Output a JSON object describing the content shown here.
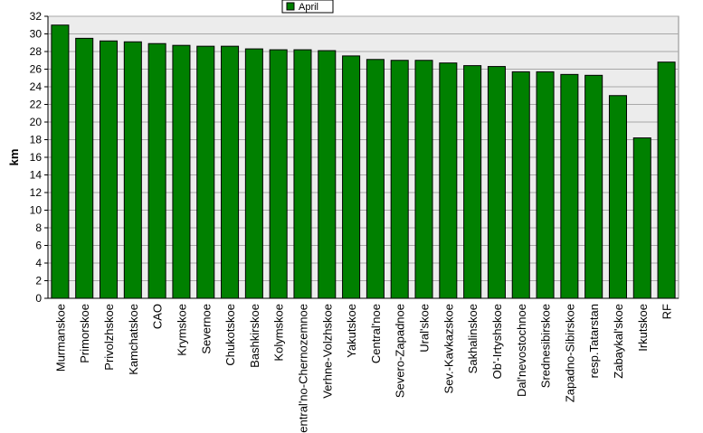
{
  "chart_data": {
    "type": "bar",
    "title": "",
    "xlabel": "",
    "ylabel": "km",
    "ylim": [
      0,
      32
    ],
    "ytick_step": 2,
    "grid": true,
    "legend_position": "top-center",
    "colors": {
      "bar": "#008000",
      "bar_edge": "#000000",
      "plot_bg": "#ececec"
    },
    "series": [
      {
        "name": "April",
        "values": [
          31.0,
          29.5,
          29.2,
          29.1,
          28.9,
          28.7,
          28.6,
          28.6,
          28.3,
          28.2,
          28.2,
          28.1,
          27.5,
          27.1,
          27.0,
          27.0,
          26.7,
          26.4,
          26.3,
          25.7,
          25.7,
          25.4,
          25.3,
          23.0,
          18.2,
          26.8
        ]
      }
    ],
    "categories": [
      "Murmanskoe",
      "Primorskoe",
      "Privolzhskoe",
      "Kamchatskoe",
      "CAO",
      "Krymskoe",
      "Severnoe",
      "Chukotskoe",
      "Bashkirskoe",
      "Kolymskoe",
      "Central'no-Chernozemnoe",
      "Verhne-Volzhskoe",
      "Yakutskoe",
      "Central'noe",
      "Severo-Zapadnoe",
      "Ural'skoe",
      "Sev.-Kavkazskoe",
      "Sakhalinskoe",
      "Ob'-Irtyshskoe",
      "Dal'nevostochnoe",
      "Srednesibirskoe",
      "Zapadno-Sibirskoe",
      "resp.Tatarstan",
      "Zabaykal'skoe",
      "Irkutskoe",
      "RF"
    ]
  }
}
